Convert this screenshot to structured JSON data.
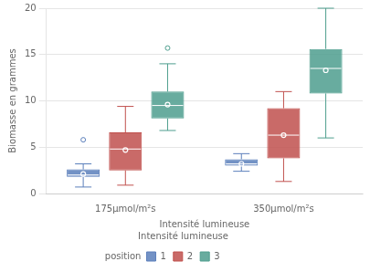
{
  "chart_data": {
    "type": "box",
    "xlabel": "Intensité lumineuse",
    "ylabel": "Biomasse en grammes",
    "categories": [
      "175μmol/m²s",
      "350μmol/m²s"
    ],
    "series": [
      {
        "name": "1",
        "color": "#5b7fbb",
        "values": [
          {
            "whislo": 0.7,
            "q1": 1.8,
            "med": 2.0,
            "mean": 2.1,
            "q3": 2.6,
            "whishi": 3.2,
            "fliers": [
              5.8
            ]
          },
          {
            "whislo": 2.4,
            "q1": 3.0,
            "med": 3.2,
            "mean": 3.2,
            "q3": 3.7,
            "whishi": 4.3,
            "fliers": []
          }
        ]
      },
      {
        "name": "2",
        "color": "#c0504d",
        "values": [
          {
            "whislo": 0.9,
            "q1": 2.5,
            "med": 4.8,
            "mean": 4.7,
            "q3": 6.6,
            "whishi": 9.4,
            "fliers": []
          },
          {
            "whislo": 1.3,
            "q1": 3.8,
            "med": 6.3,
            "mean": 6.3,
            "q3": 9.2,
            "whishi": 11.0,
            "fliers": []
          }
        ]
      },
      {
        "name": "3",
        "color": "#4e9e8e",
        "values": [
          {
            "whislo": 6.8,
            "q1": 8.1,
            "med": 9.5,
            "mean": 9.6,
            "q3": 11.0,
            "whishi": 14.0,
            "fliers": [
              15.7
            ]
          },
          {
            "whislo": 6.0,
            "q1": 10.8,
            "med": 13.5,
            "mean": 13.3,
            "q3": 15.6,
            "whishi": 20.0,
            "fliers": []
          }
        ]
      }
    ],
    "ylim": [
      0,
      20
    ],
    "yticks": [
      0,
      5,
      10,
      15,
      20
    ],
    "grid": true,
    "legend": "bottom",
    "legend_title": "Intensité lumineuse",
    "annotations": [
      {
        "text": "position"
      }
    ]
  }
}
